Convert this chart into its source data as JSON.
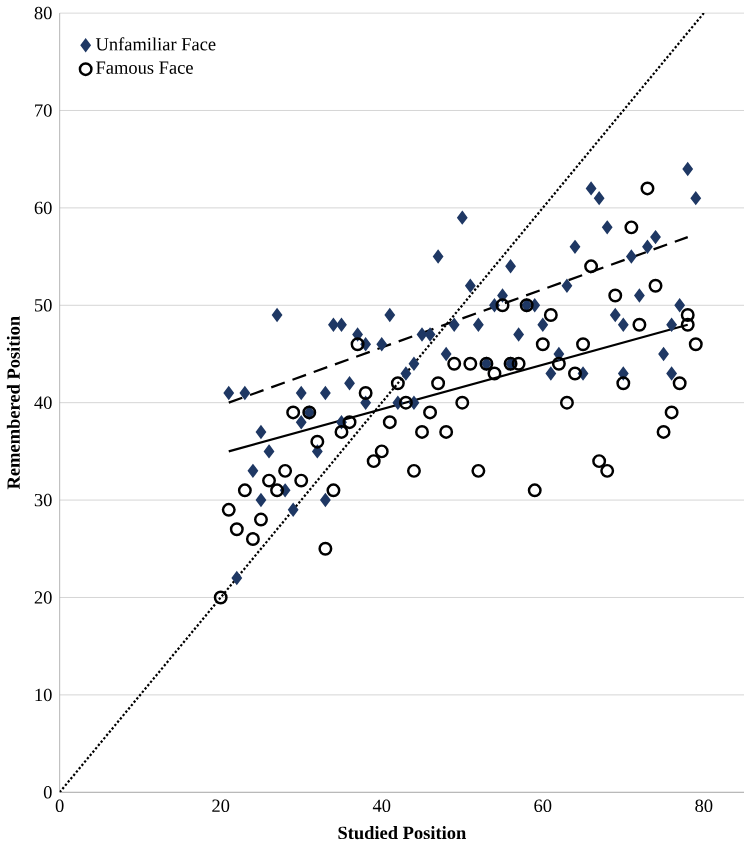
{
  "chart_data": {
    "type": "scatter",
    "xlabel": "Studied Position",
    "ylabel": "Remembered Position",
    "xlim": [
      0,
      85
    ],
    "ylim": [
      0,
      80
    ],
    "xticks": [
      0,
      20,
      40,
      60,
      80
    ],
    "yticks": [
      0,
      10,
      20,
      30,
      40,
      50,
      60,
      70,
      80
    ],
    "grid": "y",
    "legend": "top left",
    "series": [
      {
        "name": "Unfamiliar Face",
        "color": "#1f3864",
        "marker": "diamond",
        "x": [
          21,
          22,
          23,
          24,
          25,
          26,
          27,
          28,
          29,
          30,
          31,
          32,
          33,
          34,
          35,
          36,
          37,
          38,
          40,
          41,
          42,
          43,
          44,
          45,
          46,
          47,
          48,
          49,
          50,
          51,
          52,
          53,
          54,
          55,
          56,
          57,
          58,
          59,
          60,
          61,
          62,
          63,
          64,
          65,
          66,
          67,
          68,
          69,
          70,
          71,
          72,
          73,
          74,
          75,
          76,
          77,
          78,
          79,
          76,
          44,
          38,
          35,
          30,
          25,
          33,
          56,
          70
        ],
        "values": [
          41,
          22,
          41,
          33,
          37,
          35,
          49,
          31,
          29,
          41,
          39,
          35,
          41,
          48,
          48,
          42,
          47,
          46,
          46,
          49,
          40,
          43,
          44,
          47,
          47,
          55,
          45,
          48,
          59,
          52,
          48,
          44,
          50,
          51,
          54,
          47,
          50,
          50,
          48,
          43,
          45,
          52,
          56,
          43,
          62,
          61,
          58,
          49,
          48,
          55,
          51,
          56,
          57,
          45,
          43,
          50,
          64,
          61,
          48,
          40,
          40,
          38,
          38,
          30,
          30,
          44,
          43
        ]
      },
      {
        "name": "Famous Face",
        "color": "#000000",
        "marker": "circle",
        "x": [
          20,
          21,
          22,
          23,
          24,
          25,
          26,
          27,
          28,
          29,
          30,
          31,
          32,
          33,
          34,
          35,
          36,
          37,
          38,
          39,
          40,
          41,
          42,
          43,
          44,
          45,
          46,
          47,
          48,
          49,
          50,
          51,
          52,
          53,
          54,
          55,
          56,
          57,
          58,
          59,
          60,
          61,
          62,
          63,
          64,
          65,
          66,
          67,
          68,
          69,
          70,
          71,
          72,
          73,
          74,
          75,
          76,
          77,
          78,
          79,
          78
        ],
        "values": [
          20,
          29,
          27,
          31,
          26,
          28,
          32,
          31,
          33,
          39,
          32,
          39,
          36,
          25,
          31,
          37,
          38,
          46,
          41,
          34,
          35,
          38,
          42,
          40,
          33,
          37,
          39,
          42,
          37,
          44,
          40,
          44,
          33,
          44,
          43,
          50,
          44,
          44,
          50,
          31,
          46,
          49,
          44,
          40,
          43,
          46,
          54,
          34,
          33,
          51,
          42,
          58,
          48,
          62,
          52,
          37,
          39,
          42,
          48,
          46,
          49
        ]
      },
      {
        "type": "line",
        "color": "#000000",
        "line_style": "dashed",
        "x": [
          21,
          78
        ],
        "values": [
          40,
          57
        ]
      },
      {
        "type": "line",
        "color": "#000000",
        "line_style": "solid",
        "x": [
          21,
          78
        ],
        "values": [
          35,
          48
        ]
      },
      {
        "type": "line",
        "color": "#000000",
        "line_style": "dotted",
        "x": [
          0,
          80
        ],
        "values": [
          0,
          80
        ]
      }
    ]
  }
}
